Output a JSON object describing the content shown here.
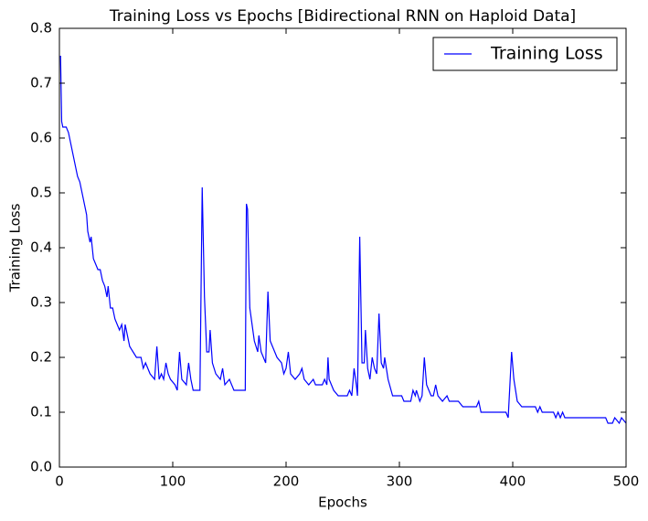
{
  "chart_data": {
    "type": "line",
    "title": "Training Loss vs Epochs [Bidirectional RNN on Haploid Data]",
    "x_label": "Epochs",
    "y_label": "Training Loss",
    "x": [
      1,
      2,
      3,
      6,
      8,
      10,
      12,
      14,
      16,
      18,
      20,
      22,
      24,
      25,
      27,
      28,
      30,
      32,
      34,
      36,
      38,
      40,
      42,
      43,
      45,
      47,
      49,
      51,
      53,
      55,
      57,
      58,
      60,
      62,
      65,
      68,
      72,
      74,
      76,
      78,
      80,
      84,
      86,
      88,
      90,
      92,
      94,
      96,
      98,
      102,
      104,
      106,
      108,
      112,
      114,
      116,
      118,
      124,
      126,
      128,
      130,
      132,
      133,
      135,
      138,
      142,
      144,
      146,
      150,
      154,
      164,
      165,
      166,
      168,
      170,
      172,
      175,
      176,
      178,
      182,
      184,
      186,
      188,
      192,
      196,
      198,
      200,
      202,
      204,
      208,
      212,
      214,
      216,
      220,
      224,
      226,
      232,
      234,
      236,
      237,
      238,
      242,
      246,
      254,
      256,
      258,
      260,
      262,
      263,
      265,
      267,
      269,
      270,
      272,
      274,
      276,
      278,
      280,
      282,
      284,
      286,
      287,
      290,
      294,
      302,
      304,
      310,
      312,
      314,
      315,
      318,
      320,
      322,
      324,
      326,
      328,
      330,
      332,
      334,
      338,
      342,
      344,
      352,
      356,
      368,
      370,
      372,
      394,
      396,
      399,
      401,
      404,
      408,
      420,
      422,
      424,
      426,
      436,
      438,
      440,
      442,
      444,
      446,
      482,
      484,
      488,
      490,
      494,
      496,
      500
    ],
    "series": [
      {
        "name": "Training Loss",
        "color": "#0000ff",
        "values": [
          0.75,
          0.63,
          0.62,
          0.62,
          0.61,
          0.59,
          0.57,
          0.55,
          0.53,
          0.52,
          0.5,
          0.48,
          0.46,
          0.43,
          0.41,
          0.42,
          0.38,
          0.37,
          0.36,
          0.36,
          0.34,
          0.33,
          0.31,
          0.33,
          0.29,
          0.29,
          0.27,
          0.26,
          0.25,
          0.26,
          0.23,
          0.26,
          0.24,
          0.22,
          0.21,
          0.2,
          0.2,
          0.18,
          0.19,
          0.18,
          0.17,
          0.16,
          0.22,
          0.16,
          0.17,
          0.16,
          0.19,
          0.17,
          0.16,
          0.15,
          0.14,
          0.21,
          0.16,
          0.15,
          0.19,
          0.16,
          0.14,
          0.14,
          0.51,
          0.31,
          0.21,
          0.21,
          0.25,
          0.19,
          0.17,
          0.16,
          0.18,
          0.15,
          0.16,
          0.14,
          0.14,
          0.48,
          0.47,
          0.29,
          0.26,
          0.23,
          0.21,
          0.24,
          0.21,
          0.19,
          0.32,
          0.23,
          0.22,
          0.2,
          0.19,
          0.17,
          0.18,
          0.21,
          0.17,
          0.16,
          0.17,
          0.18,
          0.16,
          0.15,
          0.16,
          0.15,
          0.15,
          0.16,
          0.15,
          0.2,
          0.16,
          0.14,
          0.13,
          0.13,
          0.14,
          0.13,
          0.18,
          0.15,
          0.13,
          0.42,
          0.19,
          0.19,
          0.25,
          0.18,
          0.16,
          0.2,
          0.18,
          0.17,
          0.28,
          0.19,
          0.18,
          0.2,
          0.16,
          0.13,
          0.13,
          0.12,
          0.12,
          0.14,
          0.13,
          0.14,
          0.12,
          0.13,
          0.2,
          0.15,
          0.14,
          0.13,
          0.13,
          0.15,
          0.13,
          0.12,
          0.13,
          0.12,
          0.12,
          0.11,
          0.11,
          0.12,
          0.1,
          0.1,
          0.09,
          0.21,
          0.16,
          0.12,
          0.11,
          0.11,
          0.1,
          0.11,
          0.1,
          0.1,
          0.09,
          0.1,
          0.09,
          0.1,
          0.09,
          0.09,
          0.08,
          0.08,
          0.09,
          0.08,
          0.09,
          0.08
        ]
      }
    ],
    "xlim": [
      0,
      500
    ],
    "xticks": [
      0,
      100,
      200,
      300,
      400,
      500
    ],
    "ylim": [
      0,
      0.8
    ],
    "yticks": [
      {
        "value": 0,
        "label": "0.0"
      },
      0.1,
      0.2,
      0.3,
      0.4,
      0.5,
      0.6,
      0.7,
      0.8
    ],
    "legend": "upper right",
    "grid": false
  }
}
